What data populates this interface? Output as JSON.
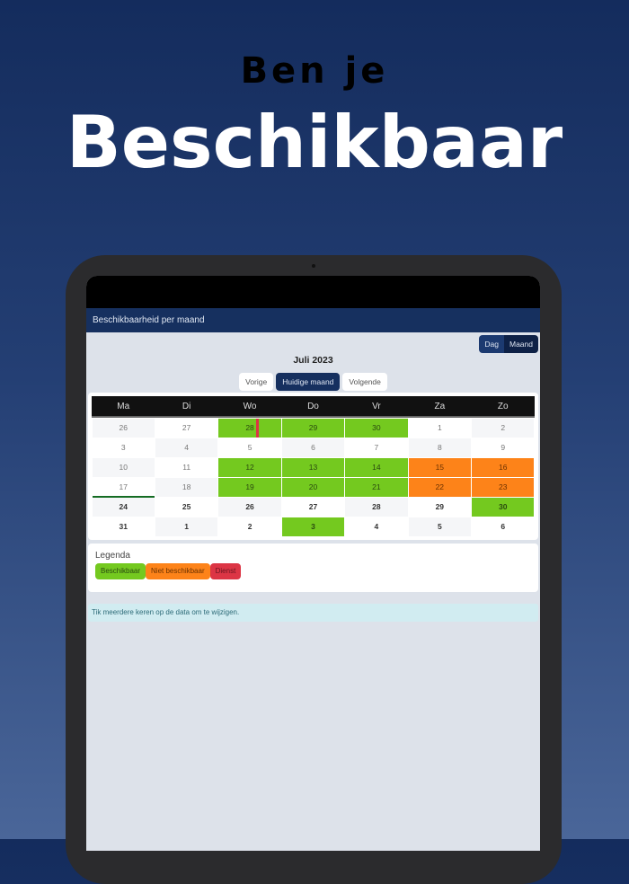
{
  "promo": {
    "line1": "Ben je",
    "line2": "Beschikbaar"
  },
  "app": {
    "title": "Beschikbaarheid per maand",
    "view_toggle": [
      "Dag",
      "Maand"
    ],
    "month": "Juli 2023",
    "nav": {
      "prev": "Vorige",
      "current": "Huidige maand",
      "next": "Volgende"
    },
    "weekdays": [
      "Ma",
      "Di",
      "Wo",
      "Do",
      "Vr",
      "Za",
      "Zo"
    ],
    "weeks": [
      [
        {
          "d": "26",
          "s": ""
        },
        {
          "d": "27",
          "s": ""
        },
        {
          "d": "28",
          "s": "beschikbaar",
          "dienst": true
        },
        {
          "d": "29",
          "s": "beschikbaar"
        },
        {
          "d": "30",
          "s": "beschikbaar"
        },
        {
          "d": "1",
          "s": ""
        },
        {
          "d": "2",
          "s": ""
        }
      ],
      [
        {
          "d": "3",
          "s": ""
        },
        {
          "d": "4",
          "s": ""
        },
        {
          "d": "5",
          "s": ""
        },
        {
          "d": "6",
          "s": ""
        },
        {
          "d": "7",
          "s": ""
        },
        {
          "d": "8",
          "s": ""
        },
        {
          "d": "9",
          "s": ""
        }
      ],
      [
        {
          "d": "10",
          "s": ""
        },
        {
          "d": "11",
          "s": ""
        },
        {
          "d": "12",
          "s": "beschikbaar"
        },
        {
          "d": "13",
          "s": "beschikbaar"
        },
        {
          "d": "14",
          "s": "beschikbaar"
        },
        {
          "d": "15",
          "s": "niet"
        },
        {
          "d": "16",
          "s": "niet"
        }
      ],
      [
        {
          "d": "17",
          "s": "",
          "today": true
        },
        {
          "d": "18",
          "s": ""
        },
        {
          "d": "19",
          "s": "beschikbaar"
        },
        {
          "d": "20",
          "s": "beschikbaar"
        },
        {
          "d": "21",
          "s": "beschikbaar"
        },
        {
          "d": "22",
          "s": "niet"
        },
        {
          "d": "23",
          "s": "niet"
        }
      ],
      [
        {
          "d": "24",
          "s": "",
          "bold": true
        },
        {
          "d": "25",
          "s": "",
          "bold": true
        },
        {
          "d": "26",
          "s": "",
          "bold": true
        },
        {
          "d": "27",
          "s": "",
          "bold": true
        },
        {
          "d": "28",
          "s": "",
          "bold": true
        },
        {
          "d": "29",
          "s": "",
          "bold": true
        },
        {
          "d": "30",
          "s": "beschikbaar",
          "bold": true
        }
      ],
      [
        {
          "d": "31",
          "s": "",
          "bold": true
        },
        {
          "d": "1",
          "s": "",
          "bold": true
        },
        {
          "d": "2",
          "s": "",
          "bold": true
        },
        {
          "d": "3",
          "s": "beschikbaar",
          "bold": true
        },
        {
          "d": "4",
          "s": "",
          "bold": true
        },
        {
          "d": "5",
          "s": "",
          "bold": true
        },
        {
          "d": "6",
          "s": "",
          "bold": true
        }
      ]
    ],
    "legend": {
      "title": "Legenda",
      "items": [
        {
          "label": "Beschikbaar",
          "color": "#74c91f"
        },
        {
          "label": "Niet beschikbaar",
          "color": "#fd8319"
        },
        {
          "label": "Dienst",
          "color": "#dc3545"
        }
      ]
    },
    "hint": "Tik meerdere keren op de data om te wijzigen."
  }
}
